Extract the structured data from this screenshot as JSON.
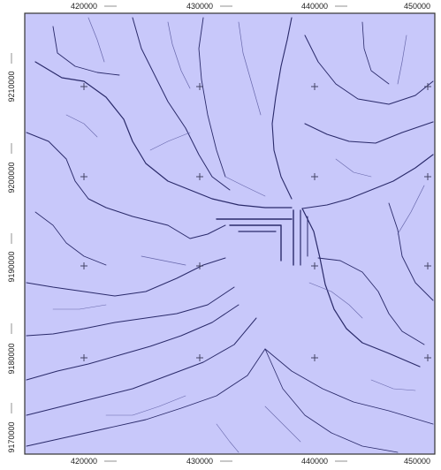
{
  "map": {
    "background_color": "#c8c8fa",
    "river_color": "#2a2a6a",
    "river_light_color": "#6666aa",
    "x_labels": [
      "420000",
      "430000",
      "440000",
      "450000"
    ],
    "y_labels": [
      "9210000",
      "9200000",
      "9190000",
      "9180000",
      "9170000"
    ]
  }
}
